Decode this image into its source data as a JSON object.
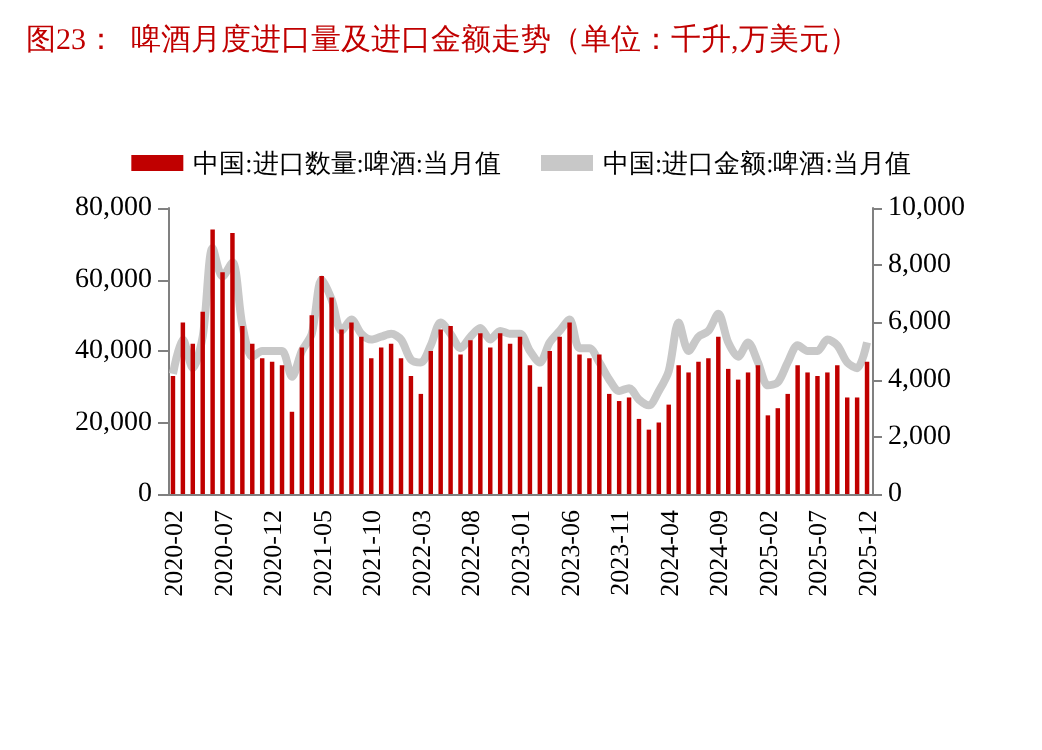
{
  "chart_data": {
    "type": "bar",
    "title": "图23：  啤酒月度进口量及进口金额走势（单位：千升,万美元）",
    "categories": [
      "2020-02",
      null,
      null,
      null,
      null,
      "2020-07",
      null,
      null,
      null,
      null,
      "2020-12",
      null,
      null,
      null,
      null,
      "2021-05",
      null,
      null,
      null,
      null,
      "2021-10",
      null,
      null,
      null,
      null,
      "2022-03",
      null,
      null,
      null,
      null,
      "2022-08",
      null,
      null,
      null,
      null,
      "2023-01",
      null,
      null,
      null,
      null,
      "2023-06",
      null,
      null,
      null,
      null,
      "2023-11",
      null,
      null,
      null,
      null,
      "2024-04",
      null,
      null,
      null,
      null,
      "2024-09",
      null,
      null,
      null,
      null,
      "2025-02",
      null,
      null,
      null,
      null,
      "2025-07",
      null,
      null,
      null,
      null,
      "2025-12"
    ],
    "series": [
      {
        "name": "中国:进口数量:啤酒:当月值",
        "color": "#c00000",
        "values": [
          33000,
          48000,
          42000,
          51000,
          74000,
          62000,
          73000,
          47000,
          42000,
          38000,
          37000,
          36000,
          23000,
          41000,
          50000,
          61000,
          55000,
          46000,
          48000,
          44000,
          38000,
          41000,
          42000,
          38000,
          33000,
          28000,
          40000,
          46000,
          47000,
          39000,
          43000,
          45000,
          41000,
          45000,
          42000,
          44000,
          36000,
          30000,
          40000,
          44000,
          48000,
          39000,
          38000,
          39000,
          28000,
          26000,
          27000,
          21000,
          18000,
          20000,
          25000,
          36000,
          34000,
          37000,
          38000,
          44000,
          35000,
          32000,
          34000,
          36000,
          22000,
          24000,
          28000,
          36000,
          34000,
          33000,
          34000,
          36000,
          27000,
          27000,
          37000
        ]
      },
      {
        "name": "中国:进口金额:啤酒:当月值",
        "type": "line",
        "axis": "y2",
        "color": "#c8c8c8",
        "values": [
          4200,
          5400,
          4400,
          5500,
          8600,
          7600,
          8100,
          5900,
          4800,
          5000,
          5000,
          5000,
          4100,
          5000,
          5600,
          7500,
          6800,
          5700,
          6100,
          5600,
          5400,
          5500,
          5600,
          5400,
          4700,
          4600,
          5200,
          6000,
          5600,
          5100,
          5500,
          5800,
          5400,
          5700,
          5600,
          5600,
          5000,
          4600,
          5300,
          5700,
          6100,
          5100,
          5100,
          4600,
          4000,
          3600,
          3700,
          3300,
          3100,
          3600,
          4300,
          6000,
          5000,
          5500,
          5700,
          6300,
          5300,
          4800,
          5300,
          4600,
          3800,
          3900,
          4600,
          5200,
          5000,
          5000,
          5400,
          5200,
          4600,
          4400,
          5300
        ]
      }
    ],
    "ylim": [
      0,
      80000
    ],
    "yticks": [
      0,
      {
        "value": 20000,
        "label": "20,000"
      },
      {
        "value": 40000,
        "label": "40,000"
      },
      {
        "value": 60000,
        "label": "60,000"
      },
      {
        "value": 80000,
        "label": "80,000"
      }
    ],
    "y2lim": [
      0,
      10000
    ],
    "y2ticks": [
      0,
      {
        "value": 2000,
        "label": "2,000"
      },
      {
        "value": 4000,
        "label": "4,000"
      },
      {
        "value": 6000,
        "label": "6,000"
      },
      {
        "value": 8000,
        "label": "8,000"
      },
      {
        "value": 10000,
        "label": "10,000"
      }
    ],
    "legend": "top",
    "grid": false,
    "marker": "none"
  }
}
